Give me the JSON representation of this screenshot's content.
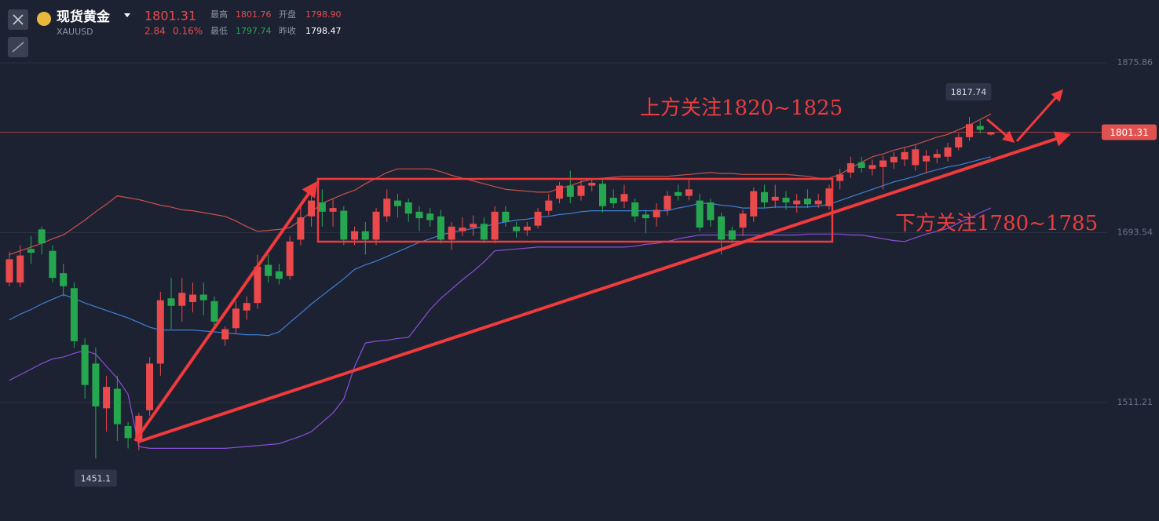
{
  "header": {
    "title": "现货黄金",
    "symbol": "XAUUSD",
    "price": "1801.31",
    "change": "2.84",
    "change_pct": "0.16%",
    "high_label": "最高",
    "high": "1801.76",
    "open_label": "开盘",
    "open": "1798.90",
    "low_label": "最低",
    "low": "1797.74",
    "prev_close_label": "昨收",
    "prev_close": "1798.47"
  },
  "chart_data": {
    "type": "candlestick",
    "up_color": "#ea4a4c",
    "down_color": "#25a750",
    "ylim": [
      1384.04,
      1943.23
    ],
    "yticks": [
      1875.86,
      1693.54,
      1511.21
    ],
    "grid": true,
    "annotations": [
      "上方关注1820~1825",
      "下方关注1780~1785"
    ],
    "open": [
      1640,
      1640,
      1676,
      1697,
      1674,
      1650,
      1634,
      1573,
      1553,
      1505,
      1526,
      1486,
      1470,
      1503,
      1553,
      1623,
      1615,
      1619,
      1627,
      1620,
      1579,
      1591,
      1610,
      1618,
      1659,
      1652,
      1647,
      1686,
      1711,
      1726,
      1716,
      1717,
      1686,
      1695,
      1686,
      1711,
      1728,
      1726,
      1716,
      1714,
      1711,
      1686,
      1695,
      1699,
      1703,
      1686,
      1716,
      1700,
      1696,
      1701,
      1717,
      1730,
      1744,
      1733,
      1744,
      1746,
      1731,
      1727,
      1726,
      1713,
      1710,
      1718,
      1737,
      1733,
      1728,
      1726,
      1711,
      1696,
      1699,
      1711,
      1737,
      1728,
      1731,
      1724,
      1730,
      1724,
      1722,
      1749,
      1758,
      1769,
      1762,
      1764,
      1769,
      1772,
      1766,
      1770,
      1774,
      1775,
      1785,
      1796,
      1808,
      1798.9
    ],
    "high": [
      1673,
      1680,
      1690,
      1700,
      1680,
      1660,
      1640,
      1580,
      1570,
      1540,
      1540,
      1490,
      1500,
      1560,
      1630,
      1645,
      1645,
      1640,
      1640,
      1625,
      1593,
      1620,
      1625,
      1670,
      1670,
      1660,
      1690,
      1725,
      1740,
      1740,
      1730,
      1722,
      1700,
      1705,
      1720,
      1740,
      1735,
      1730,
      1722,
      1720,
      1718,
      1705,
      1710,
      1712,
      1710,
      1722,
      1722,
      1705,
      1705,
      1720,
      1735,
      1748,
      1760,
      1750,
      1752,
      1750,
      1740,
      1745,
      1730,
      1718,
      1725,
      1738,
      1745,
      1750,
      1735,
      1730,
      1715,
      1700,
      1718,
      1742,
      1745,
      1745,
      1738,
      1735,
      1740,
      1735,
      1745,
      1762,
      1775,
      1775,
      1772,
      1776,
      1780,
      1785,
      1788,
      1782,
      1783,
      1790,
      1800,
      1817.74,
      1814,
      1801.76
    ],
    "low": [
      1636,
      1635,
      1660,
      1670,
      1640,
      1625,
      1570,
      1515,
      1451.1,
      1480,
      1470,
      1462,
      1460,
      1497,
      1540,
      1590,
      1598,
      1608,
      1605,
      1590,
      1572,
      1585,
      1600,
      1612,
      1640,
      1638,
      1643,
      1680,
      1700,
      1700,
      1700,
      1680,
      1680,
      1670,
      1680,
      1705,
      1710,
      1705,
      1695,
      1700,
      1682,
      1675,
      1690,
      1690,
      1682,
      1682,
      1700,
      1688,
      1690,
      1698,
      1712,
      1725,
      1725,
      1728,
      1738,
      1715,
      1720,
      1720,
      1705,
      1693,
      1700,
      1712,
      1728,
      1728,
      1695,
      1700,
      1670,
      1678,
      1690,
      1705,
      1720,
      1720,
      1718,
      1715,
      1720,
      1720,
      1718,
      1740,
      1752,
      1758,
      1755,
      1740,
      1762,
      1765,
      1760,
      1757,
      1768,
      1770,
      1782,
      1792,
      1800,
      1797.74
    ],
    "close": [
      1665,
      1669,
      1672,
      1682,
      1645,
      1636,
      1577,
      1530,
      1507,
      1528,
      1488,
      1473,
      1497,
      1553,
      1621,
      1615,
      1629,
      1627,
      1621,
      1598,
      1590,
      1612,
      1618,
      1657,
      1647,
      1644,
      1684,
      1710,
      1728,
      1716,
      1720,
      1686,
      1695,
      1686,
      1716,
      1730,
      1722,
      1714,
      1709,
      1707,
      1686,
      1700,
      1699,
      1703,
      1686,
      1716,
      1705,
      1695,
      1700,
      1716,
      1728,
      1744,
      1732,
      1744,
      1747,
      1722,
      1725,
      1735,
      1711,
      1709,
      1718,
      1733,
      1733,
      1740,
      1699,
      1707,
      1686,
      1686,
      1714,
      1738,
      1726,
      1732,
      1726,
      1728,
      1724,
      1728,
      1741,
      1756,
      1768,
      1763,
      1766,
      1771,
      1775,
      1780,
      1783,
      1776,
      1778,
      1785,
      1796,
      1810,
      1804,
      1801.31
    ],
    "overlays": [
      {
        "color": "#c9524a",
        "values": [
          1670,
          1674,
          1678,
          1682,
          1687,
          1691,
          1699,
          1707,
          1716,
          1724,
          1733,
          1731,
          1729,
          1726,
          1723,
          1721,
          1718,
          1717,
          1715,
          1713,
          1711,
          1706,
          1700,
          1695,
          1696,
          1697,
          1699,
          1707,
          1716,
          1725,
          1730,
          1735,
          1739,
          1746,
          1752,
          1758,
          1762,
          1762,
          1762,
          1762,
          1759,
          1755,
          1752,
          1749,
          1746,
          1743,
          1740,
          1739,
          1738,
          1737,
          1737,
          1741,
          1744,
          1748,
          1751,
          1752,
          1753,
          1754,
          1754,
          1754,
          1754,
          1754,
          1755,
          1756,
          1757,
          1758,
          1757,
          1757,
          1756,
          1756,
          1756,
          1756,
          1756,
          1755,
          1754,
          1752,
          1752,
          1756,
          1763,
          1769,
          1775,
          1778,
          1782,
          1785,
          1788,
          1792,
          1796,
          1799,
          1804,
          1809,
          1815,
          1821
        ]
      },
      {
        "color": "#3f7fd6",
        "values": [
          1600,
          1606,
          1611,
          1617,
          1622,
          1627,
          1623,
          1618,
          1614,
          1610,
          1606,
          1602,
          1597,
          1592,
          1589,
          1589,
          1589,
          1589,
          1588,
          1587,
          1586,
          1585,
          1584,
          1584,
          1583,
          1587,
          1597,
          1607,
          1617,
          1626,
          1635,
          1644,
          1654,
          1659,
          1663,
          1668,
          1673,
          1678,
          1683,
          1687,
          1691,
          1694,
          1696,
          1698,
          1700,
          1703,
          1705,
          1707,
          1708,
          1710,
          1711,
          1713,
          1714,
          1716,
          1717,
          1717,
          1717,
          1717,
          1717,
          1717,
          1717,
          1717,
          1720,
          1722,
          1725,
          1725,
          1723,
          1722,
          1720,
          1720,
          1720,
          1721,
          1721,
          1721,
          1721,
          1722,
          1724,
          1728,
          1732,
          1736,
          1740,
          1744,
          1748,
          1751,
          1754,
          1758,
          1761,
          1764,
          1766,
          1769,
          1772,
          1775
        ]
      },
      {
        "color": "#8a4fd8",
        "values": [
          1535,
          1541,
          1547,
          1553,
          1558,
          1560,
          1564,
          1567,
          1563,
          1550,
          1537,
          1520,
          1464,
          1462,
          1462,
          1462,
          1462,
          1462,
          1462,
          1462,
          1462,
          1463,
          1464,
          1465,
          1466,
          1467,
          1471,
          1475,
          1480,
          1490,
          1500,
          1515,
          1550,
          1575,
          1577,
          1578,
          1580,
          1581,
          1596,
          1611,
          1623,
          1633,
          1643,
          1652,
          1662,
          1674,
          1675,
          1676,
          1677,
          1678,
          1678,
          1678,
          1678,
          1678,
          1678,
          1678,
          1678,
          1678,
          1679,
          1681,
          1682,
          1684,
          1687,
          1689,
          1691,
          1691,
          1691,
          1691,
          1691,
          1691,
          1691,
          1691,
          1691,
          1691,
          1692,
          1692,
          1692,
          1692,
          1691,
          1691,
          1689,
          1687,
          1685,
          1684,
          1688,
          1692,
          1695,
          1698,
          1704,
          1709,
          1715,
          1720
        ]
      }
    ]
  }
}
